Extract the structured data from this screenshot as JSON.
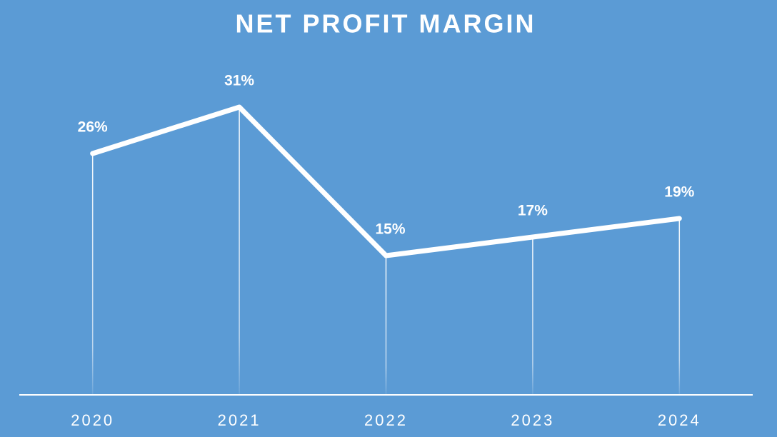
{
  "chart_data": {
    "type": "line",
    "title": "NET PROFIT MARGIN",
    "categories": [
      "2020",
      "2021",
      "2022",
      "2023",
      "2024"
    ],
    "values": [
      26,
      31,
      15,
      17,
      19
    ],
    "value_labels": [
      "26%",
      "31%",
      "15%",
      "17%",
      "19%"
    ],
    "color": "#ffffff",
    "ylim": [
      0,
      35
    ],
    "drop_lines": true
  }
}
